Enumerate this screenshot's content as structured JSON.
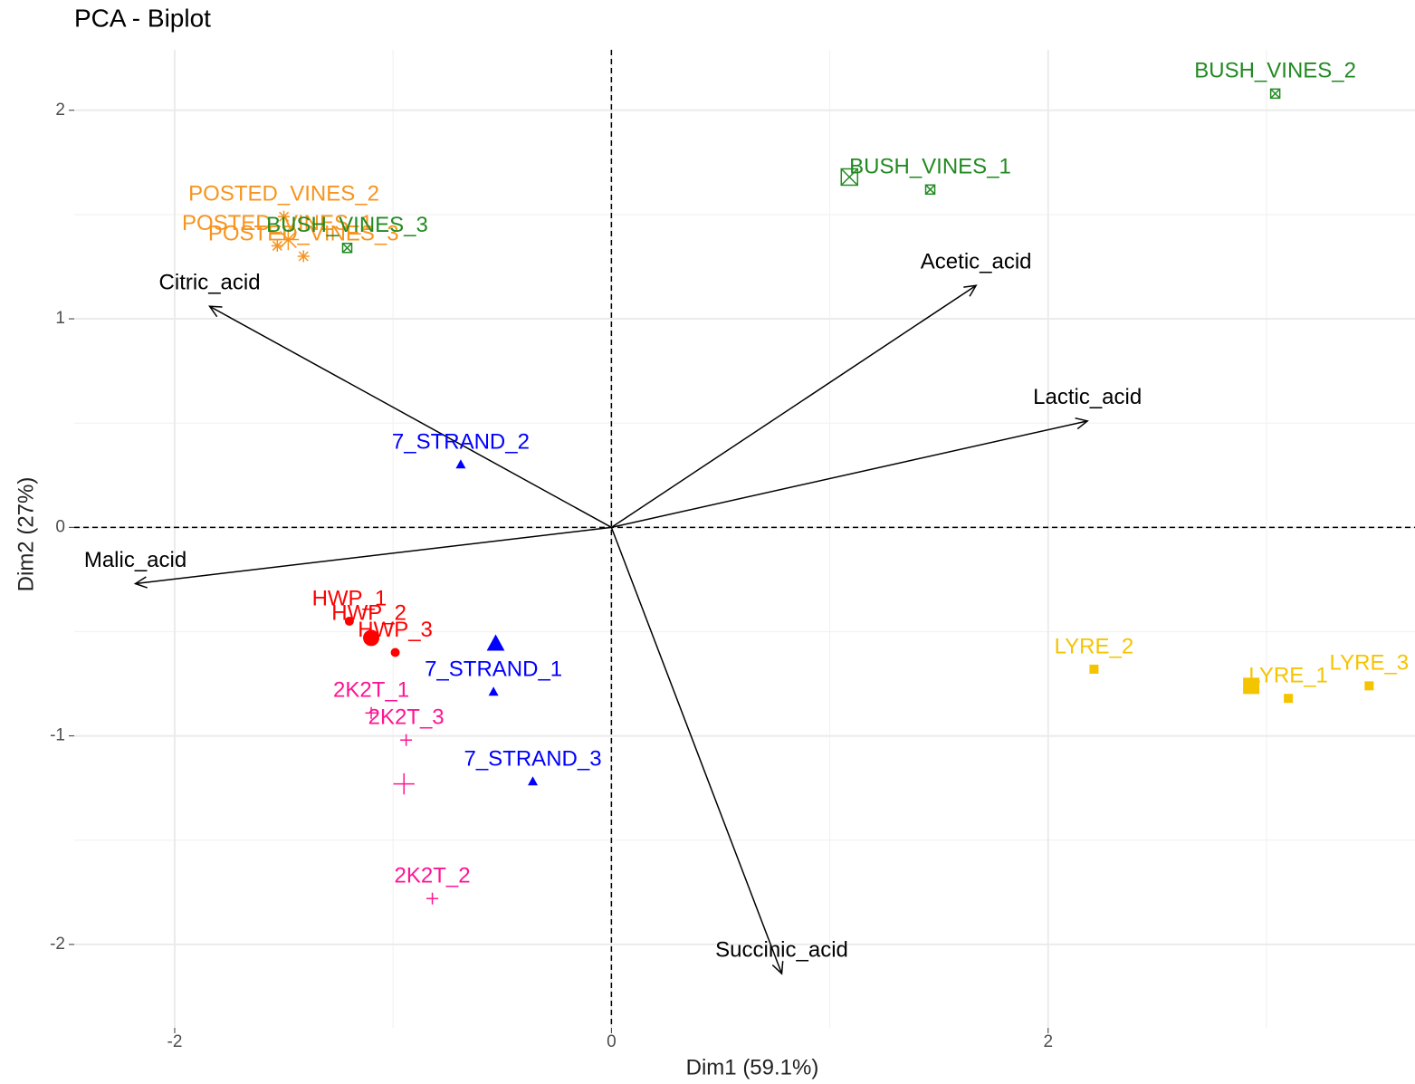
{
  "chart_data": {
    "type": "scatter",
    "title": "PCA - Biplot",
    "xlabel": "Dim1 (59.1%)",
    "ylabel": "Dim2 (27%)",
    "xlim": [
      -2.46,
      3.68
    ],
    "ylim": [
      -2.4,
      2.29
    ],
    "xticks": [
      -2,
      0,
      2
    ],
    "yticks": [
      -2,
      -1,
      0,
      1,
      2
    ],
    "grid": true,
    "series": [
      {
        "color": "#ff0000",
        "shape": "circle",
        "labels": [
          "HWP_1",
          "HWP_2",
          "HWP_3"
        ],
        "x": [
          -1.2,
          -1.11,
          -0.99
        ],
        "y": [
          -0.45,
          -0.52,
          -0.6
        ],
        "mean_x": -1.1,
        "mean_y": -0.53
      },
      {
        "color": "#0000ff",
        "shape": "triangle",
        "labels": [
          "7_STRAND_2",
          "7_STRAND_1",
          "7_STRAND_3"
        ],
        "x": [
          -0.69,
          -0.54,
          -0.36
        ],
        "y": [
          0.3,
          -0.79,
          -1.22
        ],
        "mean_x": -0.53,
        "mean_y": -0.56
      },
      {
        "color": "#ff1493",
        "shape": "plus",
        "labels": [
          "2K2T_1",
          "2K2T_3",
          "2K2T_2"
        ],
        "x": [
          -1.1,
          -0.94,
          -0.82
        ],
        "y": [
          -0.89,
          -1.02,
          -1.78
        ],
        "mean_x": -0.95,
        "mean_y": -1.23
      },
      {
        "color": "#f7941d",
        "shape": "asterisk",
        "labels": [
          "POSTED_VINES_2",
          "POSTED_VINES_1",
          "POSTED_VINES_3"
        ],
        "x": [
          -1.5,
          -1.53,
          -1.41
        ],
        "y": [
          1.49,
          1.35,
          1.3
        ],
        "mean_x": -1.48,
        "mean_y": 1.38
      },
      {
        "color": "#228b22",
        "shape": "squarex",
        "labels": [
          "BUSH_VINES_1",
          "BUSH_VINES_2",
          "BUSH_VINES_3"
        ],
        "x": [
          1.46,
          3.04,
          -1.21
        ],
        "y": [
          1.62,
          2.08,
          1.34
        ],
        "mean_x": 1.09,
        "mean_y": 1.68
      },
      {
        "color": "#f5c400",
        "shape": "square",
        "labels": [
          "LYRE_2",
          "LYRE_1",
          "LYRE_3"
        ],
        "x": [
          2.21,
          3.1,
          3.47
        ],
        "y": [
          -0.68,
          -0.82,
          -0.76
        ],
        "mean_x": 2.93,
        "mean_y": -0.76
      }
    ],
    "variables": {
      "color": "#000000",
      "labels": [
        "Citric_acid",
        "Acetic_acid",
        "Lactic_acid",
        "Malic_acid",
        "Succinic_acid"
      ],
      "x": [
        -1.84,
        1.67,
        2.18,
        -2.18,
        0.78
      ],
      "y": [
        1.06,
        1.16,
        0.51,
        -0.27,
        -2.14
      ]
    }
  }
}
